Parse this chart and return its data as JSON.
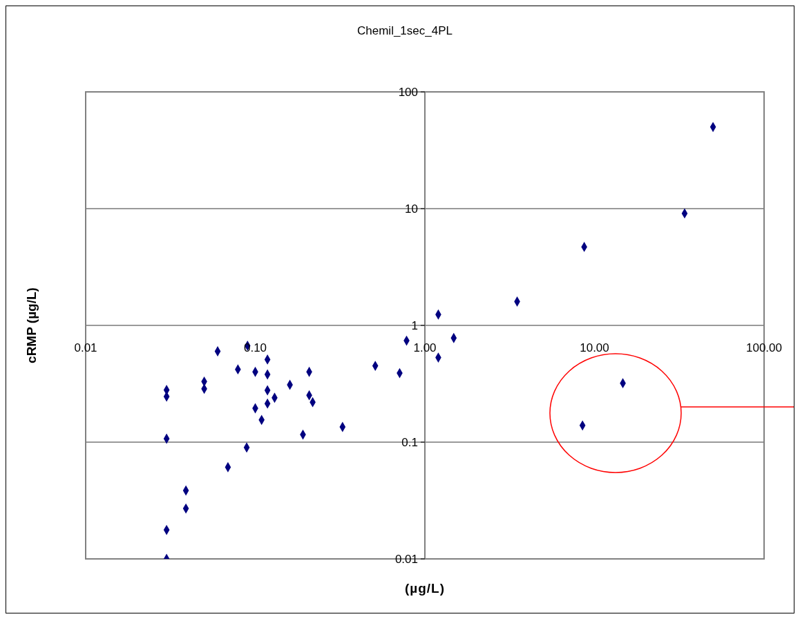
{
  "chart_data": {
    "type": "scatter",
    "title": "Chemil_1sec_4PL",
    "xlabel": "(µg/L)",
    "ylabel": "cRMP (µg/L)",
    "log": "xy",
    "grid": "y",
    "marker": "diamond",
    "xlim": [
      0.01,
      100
    ],
    "ylim": [
      0.01,
      100
    ],
    "xticks": [
      {
        "value": 0.01,
        "label": "0.01"
      },
      {
        "value": 0.1,
        "label": "0.10"
      },
      {
        "value": 1,
        "label": "1.00"
      },
      {
        "value": 10,
        "label": "10.00"
      },
      {
        "value": 100,
        "label": "100.00"
      }
    ],
    "yticks": [
      0.01,
      0.1,
      1,
      10,
      100
    ],
    "series": [
      {
        "color": "#000080",
        "x": [
          0.03,
          0.03,
          0.03,
          0.03,
          0.03,
          0.039,
          0.039,
          0.05,
          0.05,
          0.06,
          0.069,
          0.079,
          0.09,
          0.089,
          0.1,
          0.1,
          0.109,
          0.118,
          0.118,
          0.118,
          0.118,
          0.13,
          0.16,
          0.208,
          0.208,
          0.218,
          0.191,
          0.327,
          0.51,
          0.71,
          0.78,
          1.2,
          1.2,
          1.48,
          3.5,
          8.7,
          8.5,
          14.7,
          34,
          50
        ],
        "values": [
          0.28,
          0.246,
          0.107,
          0.0177,
          0.01,
          0.0385,
          0.027,
          0.33,
          0.286,
          0.6,
          0.061,
          0.42,
          0.67,
          0.09,
          0.4,
          0.195,
          0.155,
          0.51,
          0.38,
          0.278,
          0.214,
          0.24,
          0.31,
          0.4,
          0.252,
          0.22,
          0.116,
          0.135,
          0.45,
          0.39,
          0.74,
          1.24,
          0.53,
          0.78,
          1.6,
          4.7,
          0.139,
          0.32,
          9.1,
          50
        ]
      }
    ]
  }
}
